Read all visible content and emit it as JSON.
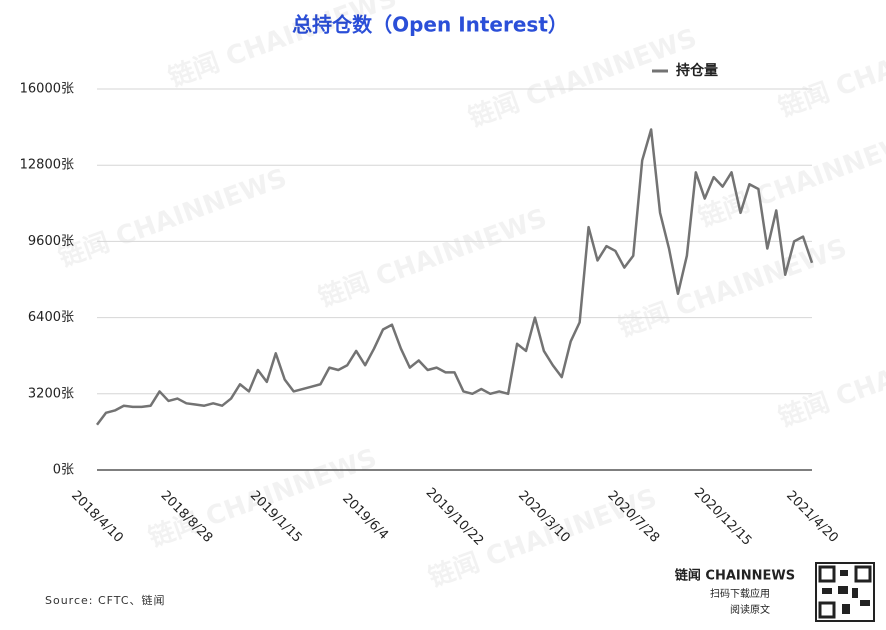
{
  "chart_data": {
    "type": "line",
    "title": "总持仓数（Open Interest）",
    "source": "Source: CFTC、链闻",
    "watermark": "链闻 CHAINNEWS",
    "footer": {
      "brand": "链闻 CHAINNEWS",
      "line1": "扫码下载应用",
      "line2": "阅读原文"
    },
    "categories": [
      "2018/4/10",
      null,
      null,
      null,
      null,
      null,
      null,
      null,
      null,
      null,
      "2018/8/28",
      null,
      null,
      null,
      null,
      null,
      null,
      null,
      null,
      null,
      "2019/1/15",
      null,
      null,
      null,
      null,
      null,
      null,
      null,
      null,
      null,
      "2019/6/4",
      null,
      null,
      null,
      null,
      null,
      null,
      null,
      null,
      null,
      "2019/10/22",
      null,
      null,
      null,
      null,
      null,
      null,
      null,
      null,
      null,
      "2020/3/10",
      null,
      null,
      null,
      null,
      null,
      null,
      null,
      null,
      null,
      "2020/7/28",
      null,
      null,
      null,
      null,
      null,
      null,
      null,
      null,
      null,
      "2020/12/15",
      null,
      null,
      null,
      null,
      null,
      null,
      null,
      null,
      null,
      "2021/4/20"
    ],
    "series": [
      {
        "name": "持仓量",
        "color": "#737373",
        "values": [
          1900,
          2400,
          2500,
          2700,
          2650,
          2650,
          2700,
          3300,
          2900,
          3000,
          2800,
          2750,
          2700,
          2800,
          2700,
          3000,
          3600,
          3300,
          4200,
          3700,
          4900,
          3800,
          3300,
          3400,
          3500,
          3600,
          4300,
          4200,
          4400,
          5000,
          4400,
          5100,
          5900,
          6100,
          5100,
          4300,
          4600,
          4200,
          4300,
          4100,
          4100,
          3300,
          3200,
          3400,
          3200,
          3300,
          3200,
          5300,
          5000,
          6400,
          5000,
          4400,
          3900,
          5400,
          6200,
          10200,
          8800,
          9400,
          9200,
          8500,
          9000,
          13000,
          14300,
          10800,
          9300,
          7400,
          9000,
          12500,
          11400,
          12300,
          11900,
          12500,
          10800,
          12000,
          11800,
          9300,
          10900,
          8200,
          9600,
          9800,
          8700
        ]
      }
    ],
    "ylim": [
      0,
      16000
    ],
    "yticks": [
      {
        "value": 0,
        "label": "0张"
      },
      {
        "value": 3200,
        "label": "3200张"
      },
      {
        "value": 6400,
        "label": "6400张"
      },
      {
        "value": 9600,
        "label": "9600张"
      },
      {
        "value": 12800,
        "label": "12800张"
      },
      {
        "value": 16000,
        "label": "16000张"
      }
    ],
    "grid": true
  }
}
